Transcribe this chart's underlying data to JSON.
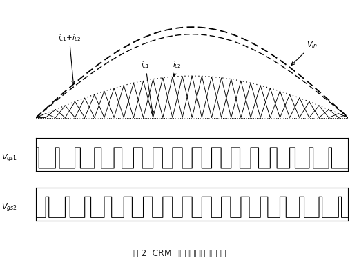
{
  "title_caption": "图 2  CRM 模式电感电流理想波形",
  "background_color": "#ffffff",
  "n_cycles": 16,
  "Vin_amplitude": 1.0,
  "iL_sum_amplitude": 0.92,
  "iL_env_amplitude": 0.46,
  "labels": {
    "Vin": "$V_{in}$",
    "iL1piL2": "$i_{L1}$+$i_{L2}$",
    "iL1": "$i_{L1}$",
    "iL2": "$i_{L2}$",
    "Vgs1": "$V_{gs1}$",
    "Vgs2": "$V_{gs2}$"
  }
}
